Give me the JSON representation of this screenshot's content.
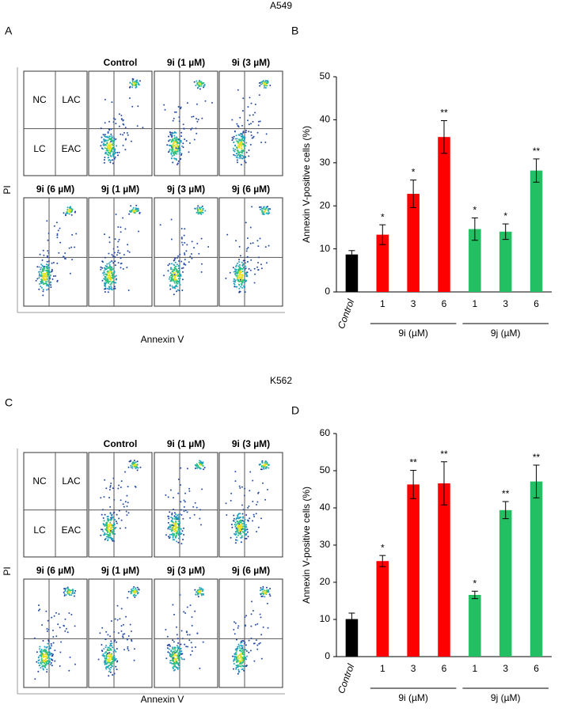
{
  "figure": [
    {
      "cell_line": "A549",
      "panel_letter": "A",
      "chart_letter": "B",
      "quadrants": [
        "NC",
        "LAC",
        "LC",
        "EAC"
      ],
      "titles": [
        "Control",
        "9i (1 µM)",
        "9i (3 µM)",
        "9i (6 µM)",
        "9j (1 µM)",
        "9j (3 µM)",
        "9j (6 µM)"
      ],
      "x_label": "Annexin V",
      "y_label": "PI"
    },
    {
      "cell_line": "K562",
      "panel_letter": "C",
      "chart_letter": "D",
      "quadrants": [
        "NC",
        "LAC",
        "LC",
        "EAC"
      ],
      "titles": [
        "Control",
        "9i (1 µM)",
        "9i (3 µM)",
        "9i (6 µM)",
        "9j (1 µM)",
        "9j (3 µM)",
        "9j (6 µM)"
      ],
      "x_label": "Annexin V",
      "y_label": "PI"
    }
  ],
  "chart_data": [
    {
      "type": "bar",
      "y_label": "Annexin V-positive cells (%)",
      "categories": [
        "Control",
        "1",
        "3",
        "6",
        "1",
        "3",
        "6"
      ],
      "values": [
        8.7,
        13.3,
        22.8,
        36,
        14.6,
        14,
        28.2
      ],
      "errors": [
        0.9,
        2.3,
        3.2,
        3.8,
        2.6,
        1.8,
        2.7
      ],
      "significance": [
        null,
        "*",
        "*",
        "**",
        "*",
        "*",
        "**"
      ],
      "colors": [
        "#000000",
        "#ff0000",
        "#ff0000",
        "#ff0000",
        "#22c063",
        "#22c063",
        "#22c063"
      ],
      "group_labels": [
        "9i (µM)",
        "9j (µM)"
      ],
      "ylim": [
        0,
        50
      ],
      "yticks": [
        0,
        10,
        20,
        30,
        40,
        50
      ]
    },
    {
      "type": "bar",
      "y_label": "Annexin V-positive cells (%)",
      "categories": [
        "Control",
        "1",
        "3",
        "6",
        "1",
        "3",
        "6"
      ],
      "values": [
        10.1,
        25.7,
        46.3,
        46.6,
        16.6,
        39.4,
        47.1
      ],
      "errors": [
        1.6,
        1.5,
        3.8,
        5.8,
        1.0,
        2.3,
        4.4
      ],
      "significance": [
        null,
        "*",
        "**",
        "**",
        "*",
        "**",
        "**"
      ],
      "colors": [
        "#000000",
        "#ff0000",
        "#ff0000",
        "#ff0000",
        "#22c063",
        "#22c063",
        "#22c063"
      ],
      "group_labels": [
        "9i (µM)",
        "9j (µM)"
      ],
      "ylim": [
        0,
        60
      ],
      "yticks": [
        0,
        10,
        20,
        30,
        40,
        50,
        60
      ]
    }
  ]
}
